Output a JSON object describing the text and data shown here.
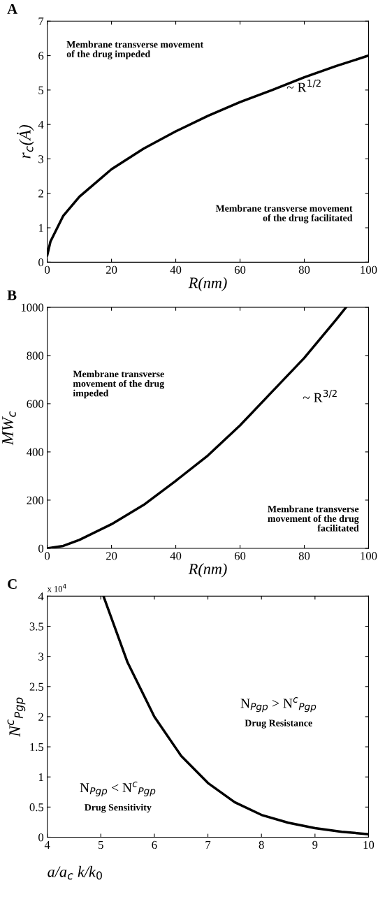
{
  "chart_data": [
    {
      "type": "line",
      "title": "A",
      "xlabel": "R(nm)",
      "ylabel": "r$_{c}$(Ȧ)",
      "x": [
        0,
        1,
        5,
        10,
        20,
        30,
        40,
        50,
        60,
        70,
        80,
        90,
        100
      ],
      "series": [
        {
          "color": "#000000",
          "values": [
            0.2,
            0.6,
            1.35,
            1.9,
            2.7,
            3.3,
            3.8,
            4.25,
            4.65,
            5.0,
            5.37,
            5.7,
            6.0
          ]
        }
      ],
      "xlim": [
        0,
        100
      ],
      "xticks": [
        0,
        20,
        40,
        60,
        80,
        100
      ],
      "ylim": [
        0,
        7
      ],
      "yticks": [
        0,
        1,
        2,
        3,
        4,
        5,
        6,
        7
      ],
      "grid": false,
      "legend": false,
      "annotations": [
        "Membrane transverse movement\nof the drug impeded",
        "~ R$^{1/2}$",
        "Membrane transverse movement\nof the drug facilitated"
      ]
    },
    {
      "type": "line",
      "title": "B",
      "xlabel": "R(nm)",
      "ylabel": "MW$_{c}$",
      "x": [
        0,
        5,
        10,
        20,
        30,
        40,
        50,
        60,
        70,
        80,
        90,
        93
      ],
      "series": [
        {
          "color": "#000000",
          "values": [
            0,
            10,
            35,
            100,
            180,
            280,
            385,
            510,
            650,
            790,
            950,
            1000
          ]
        }
      ],
      "xlim": [
        0,
        100
      ],
      "xticks": [
        0,
        20,
        40,
        60,
        80,
        100
      ],
      "ylim": [
        0,
        1000
      ],
      "yticks": [
        0,
        200,
        400,
        600,
        800,
        1000
      ],
      "grid": false,
      "legend": false,
      "annotations": [
        "Membrane transverse\nmovement of the drug\nimpeded",
        "~ R$^{3/2}$",
        "Membrane transverse\nmovement of the drug\nfacilitated"
      ]
    },
    {
      "type": "line",
      "title": "C",
      "xlabel": "a/a$_{c}$ k/k$_{0}$",
      "ylabel": "N$^{c}$$_{Pgp}$",
      "x": [
        5.05,
        5.5,
        6,
        6.5,
        7,
        7.5,
        8,
        8.5,
        9,
        9.5,
        10
      ],
      "series": [
        {
          "color": "#000000",
          "values": [
            4.0,
            2.9,
            2.0,
            1.35,
            0.9,
            0.58,
            0.37,
            0.24,
            0.15,
            0.09,
            0.05
          ]
        }
      ],
      "xlim": [
        4,
        10
      ],
      "xticks": [
        4,
        5,
        6,
        7,
        8,
        9,
        10
      ],
      "ylim": [
        0,
        4
      ],
      "yticks": [
        0,
        0.5,
        1,
        1.5,
        2,
        2.5,
        3,
        3.5,
        4
      ],
      "grid": false,
      "legend": false,
      "annotations": [
        "x 10$^{4}$",
        "N$_{Pgp}$ > N$^{c}$$_{Pgp}$",
        "Drug Resistance",
        "N$_{Pgp}$ < N$^{c}$$_{Pgp}$",
        "Drug Sensitivity"
      ]
    }
  ]
}
